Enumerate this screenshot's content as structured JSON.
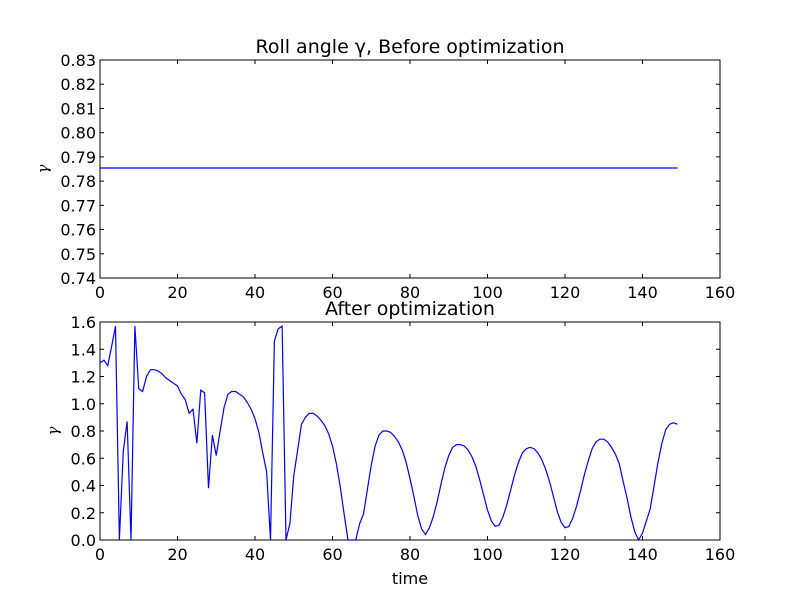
{
  "chart_data": [
    {
      "type": "line",
      "title": "Roll angle γ, Before optimization",
      "xlabel": "",
      "ylabel": "γ",
      "xlim": [
        0,
        160
      ],
      "ylim": [
        0.74,
        0.83
      ],
      "xticks": [
        0,
        20,
        40,
        60,
        80,
        100,
        120,
        140,
        160
      ],
      "xtick_labels": [
        "0",
        "20",
        "40",
        "60",
        "80",
        "100",
        "120",
        "140",
        "160"
      ],
      "yticks": [
        0.74,
        0.75,
        0.76,
        0.77,
        0.78,
        0.79,
        0.8,
        0.81,
        0.82,
        0.83
      ],
      "ytick_labels": [
        "0.74",
        "0.75",
        "0.76",
        "0.77",
        "0.78",
        "0.79",
        "0.80",
        "0.81",
        "0.82",
        "0.83"
      ],
      "grid": false,
      "series": [
        {
          "color": "#0000ff",
          "x": [
            0,
            149
          ],
          "y": [
            0.7854,
            0.7854
          ]
        }
      ]
    },
    {
      "type": "line",
      "title": "After optimization",
      "xlabel": "time",
      "ylabel": "γ",
      "xlim": [
        0,
        160
      ],
      "ylim": [
        0.0,
        1.6
      ],
      "xticks": [
        0,
        20,
        40,
        60,
        80,
        100,
        120,
        140,
        160
      ],
      "xtick_labels": [
        "0",
        "20",
        "40",
        "60",
        "80",
        "100",
        "120",
        "140",
        "160"
      ],
      "yticks": [
        0.0,
        0.2,
        0.4,
        0.6,
        0.8,
        1.0,
        1.2,
        1.4,
        1.6
      ],
      "ytick_labels": [
        "0.0",
        "0.2",
        "0.4",
        "0.6",
        "0.8",
        "1.0",
        "1.2",
        "1.4",
        "1.6"
      ],
      "grid": false,
      "series": [
        {
          "color": "#0000ff",
          "x": [
            0,
            1,
            2,
            3,
            4,
            5,
            6,
            7,
            8,
            9,
            10,
            11,
            12,
            13,
            14,
            15,
            16,
            17,
            18,
            19,
            20,
            21,
            22,
            23,
            24,
            25,
            26,
            27,
            28,
            29,
            30,
            31,
            32,
            33,
            34,
            35,
            36,
            37,
            38,
            39,
            40,
            41,
            42,
            43,
            44,
            45,
            46,
            47,
            48,
            49,
            50,
            51,
            52,
            53,
            54,
            55,
            56,
            57,
            58,
            59,
            60,
            61,
            62,
            63,
            64,
            65,
            66,
            67,
            68,
            69,
            70,
            71,
            72,
            73,
            74,
            75,
            76,
            77,
            78,
            79,
            80,
            81,
            82,
            83,
            84,
            85,
            86,
            87,
            88,
            89,
            90,
            91,
            92,
            93,
            94,
            95,
            96,
            97,
            98,
            99,
            100,
            101,
            102,
            103,
            104,
            105,
            106,
            107,
            108,
            109,
            110,
            111,
            112,
            113,
            114,
            115,
            116,
            117,
            118,
            119,
            120,
            121,
            122,
            123,
            124,
            125,
            126,
            127,
            128,
            129,
            130,
            131,
            132,
            133,
            134,
            135,
            136,
            137,
            138,
            139,
            140,
            141,
            142,
            143,
            144,
            145,
            146,
            147,
            148,
            149
          ],
          "y": [
            1.3,
            1.32,
            1.28,
            1.42,
            1.57,
            0.0,
            0.65,
            0.87,
            0.0,
            1.57,
            1.11,
            1.09,
            1.2,
            1.25,
            1.25,
            1.24,
            1.22,
            1.19,
            1.17,
            1.15,
            1.13,
            1.07,
            1.03,
            0.93,
            0.96,
            0.71,
            1.1,
            1.08,
            0.38,
            0.77,
            0.62,
            0.8,
            0.97,
            1.07,
            1.09,
            1.09,
            1.07,
            1.05,
            1.01,
            0.96,
            0.89,
            0.79,
            0.64,
            0.5,
            0.0,
            1.46,
            1.55,
            1.57,
            0.0,
            0.12,
            0.47,
            0.66,
            0.85,
            0.9,
            0.93,
            0.93,
            0.91,
            0.88,
            0.84,
            0.78,
            0.69,
            0.56,
            0.39,
            0.19,
            0.0,
            0.0,
            0.0,
            0.12,
            0.19,
            0.37,
            0.55,
            0.69,
            0.77,
            0.8,
            0.8,
            0.79,
            0.76,
            0.72,
            0.66,
            0.57,
            0.45,
            0.32,
            0.18,
            0.08,
            0.04,
            0.09,
            0.17,
            0.28,
            0.41,
            0.53,
            0.62,
            0.68,
            0.7,
            0.7,
            0.69,
            0.66,
            0.61,
            0.54,
            0.44,
            0.33,
            0.22,
            0.14,
            0.1,
            0.11,
            0.17,
            0.26,
            0.37,
            0.48,
            0.57,
            0.64,
            0.67,
            0.68,
            0.67,
            0.64,
            0.59,
            0.52,
            0.43,
            0.32,
            0.21,
            0.13,
            0.09,
            0.1,
            0.16,
            0.25,
            0.36,
            0.48,
            0.58,
            0.67,
            0.72,
            0.74,
            0.74,
            0.72,
            0.68,
            0.63,
            0.56,
            0.43,
            0.31,
            0.17,
            0.06,
            0.0,
            0.05,
            0.14,
            0.23,
            0.4,
            0.57,
            0.71,
            0.81,
            0.85,
            0.86,
            0.85
          ]
        }
      ]
    }
  ]
}
